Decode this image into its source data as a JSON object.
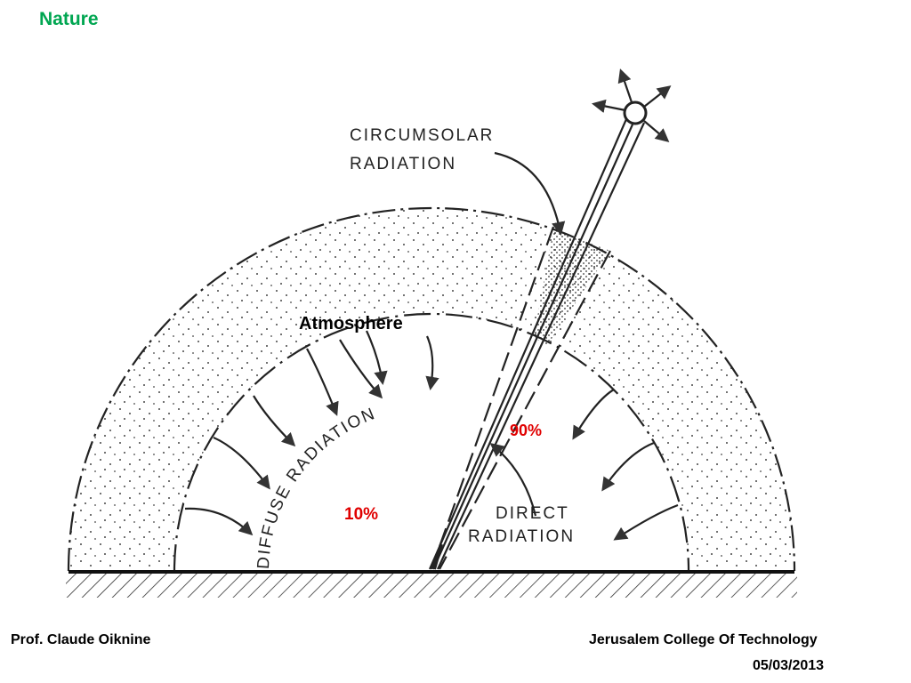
{
  "header": {
    "title": "Nature"
  },
  "diagram": {
    "circumsolar": [
      "CIRCUMSOLAR",
      "RADIATION"
    ],
    "atmosphere": "Atmosphere",
    "diffuse": "DIFFUSE RADIATION",
    "direct_share": "90%",
    "diffuse_share": "10%",
    "direct": [
      "DIRECT",
      "RADIATION"
    ]
  },
  "footer": {
    "author": "Prof. Claude Oiknine",
    "institution": "Jerusalem College Of Technology",
    "date": "05/03/2013"
  }
}
